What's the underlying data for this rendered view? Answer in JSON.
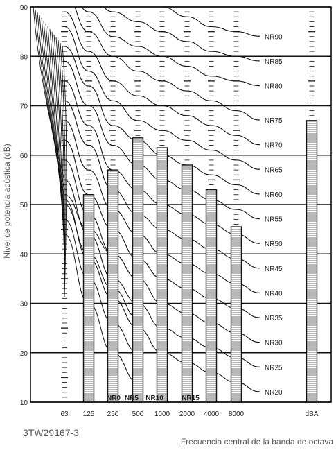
{
  "chart_data": {
    "type": "bar",
    "title": "",
    "ylabel": "Nivel de potencia acústica (dB)",
    "xlabel": "Frecuencia central de la banda de octava",
    "ylim": [
      10,
      90
    ],
    "yticks": [
      10,
      20,
      30,
      40,
      50,
      60,
      70,
      80,
      90
    ],
    "grid": true,
    "categories": [
      "63",
      "125",
      "250",
      "500",
      "1000",
      "2000",
      "4000",
      "8000",
      "dBA"
    ],
    "values": [
      null,
      52,
      57,
      63.5,
      61.5,
      58,
      53,
      45.5,
      67
    ],
    "nr_curves": [
      {
        "name": "NR90",
        "values": [
          103,
          96,
          94,
          92,
          90,
          88,
          86,
          85
        ]
      },
      {
        "name": "NR85",
        "values": [
          100,
          93,
          89,
          87,
          85,
          83,
          81,
          80
        ]
      },
      {
        "name": "NR80",
        "values": [
          96,
          89,
          84,
          82,
          80,
          78,
          76,
          75
        ]
      },
      {
        "name": "NR75",
        "values": [
          93,
          85,
          80,
          77,
          75,
          73,
          71,
          69
        ]
      },
      {
        "name": "NR70",
        "values": [
          89,
          81,
          75,
          72,
          70,
          68,
          66,
          64
        ]
      },
      {
        "name": "NR65",
        "values": [
          86,
          77,
          71,
          67,
          65,
          63,
          61,
          59
        ]
      },
      {
        "name": "NR60",
        "values": [
          82,
          74,
          66,
          63,
          60,
          58,
          56,
          54
        ]
      },
      {
        "name": "NR55",
        "values": [
          79,
          70,
          62,
          58,
          55,
          53,
          51,
          49
        ]
      },
      {
        "name": "NR50",
        "values": [
          75,
          66,
          57,
          53,
          50,
          48,
          46,
          44
        ]
      },
      {
        "name": "NR45",
        "values": [
          71,
          62,
          53,
          48,
          45,
          43,
          41,
          39
        ]
      },
      {
        "name": "NR40",
        "values": [
          67,
          57,
          49,
          44,
          40,
          38,
          36,
          34
        ]
      },
      {
        "name": "NR35",
        "values": [
          63,
          52,
          45,
          39,
          35,
          33,
          31,
          29
        ]
      },
      {
        "name": "NR30",
        "values": [
          59,
          48,
          40,
          35,
          30,
          28,
          26,
          24
        ]
      },
      {
        "name": "NR25",
        "values": [
          55,
          44,
          35,
          30,
          25,
          23,
          21,
          19
        ]
      },
      {
        "name": "NR20",
        "values": [
          51,
          39,
          31,
          25,
          20,
          18,
          16,
          14
        ]
      }
    ],
    "bottom_curve_labels": [
      "NR0",
      "NR5",
      "NR10",
      "NR15"
    ]
  },
  "figure_code": "3TW29167-3"
}
